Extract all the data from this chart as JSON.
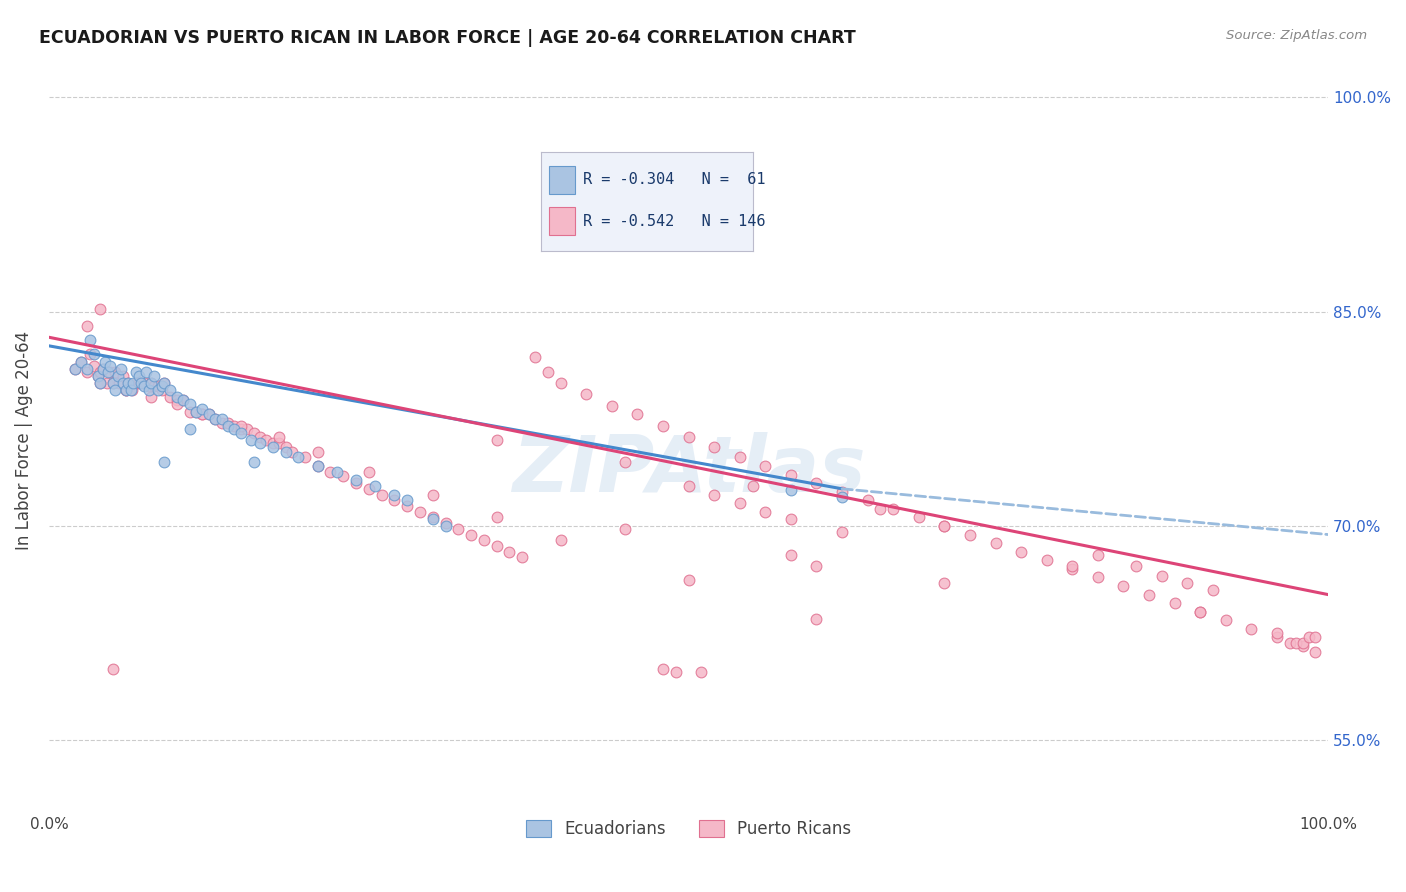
{
  "title": "ECUADORIAN VS PUERTO RICAN IN LABOR FORCE | AGE 20-64 CORRELATION CHART",
  "source": "Source: ZipAtlas.com",
  "ylabel": "In Labor Force | Age 20-64",
  "xlim": [
    0.0,
    1.0
  ],
  "ylim": [
    0.5,
    1.02
  ],
  "ytick_values": [
    0.55,
    0.7,
    0.85,
    1.0
  ],
  "right_ytick_labels": [
    "100.0%",
    "85.0%",
    "70.0%",
    "55.0%"
  ],
  "right_ytick_values": [
    1.0,
    0.85,
    0.7,
    0.55
  ],
  "xtick_labels": [
    "0.0%",
    "100.0%"
  ],
  "xtick_values": [
    0.0,
    1.0
  ],
  "ecu_color": "#aac4e2",
  "ecu_edge_color": "#6699cc",
  "pr_color": "#f5b8c8",
  "pr_edge_color": "#e07090",
  "ecu_R": -0.304,
  "ecu_N": 61,
  "pr_R": -0.542,
  "pr_N": 146,
  "trend_ecu_color": "#4488cc",
  "trend_pr_color": "#dd4477",
  "trend_ecu_dashed_color": "#99bbdd",
  "watermark": "ZIPAtlas",
  "legend_bg": "#eef2fa",
  "ecu_line_start_y": 0.826,
  "ecu_line_end_x": 0.62,
  "ecu_line_end_y": 0.726,
  "ecu_line_dashed_end_x": 1.0,
  "ecu_line_dashed_end_y": 0.694,
  "pr_line_start_y": 0.832,
  "pr_line_end_y": 0.652,
  "ecu_x": [
    0.02,
    0.025,
    0.03,
    0.032,
    0.035,
    0.038,
    0.04,
    0.042,
    0.044,
    0.046,
    0.048,
    0.05,
    0.052,
    0.054,
    0.056,
    0.058,
    0.06,
    0.062,
    0.064,
    0.066,
    0.068,
    0.07,
    0.072,
    0.074,
    0.076,
    0.078,
    0.08,
    0.082,
    0.085,
    0.088,
    0.09,
    0.095,
    0.1,
    0.105,
    0.11,
    0.115,
    0.12,
    0.125,
    0.13,
    0.135,
    0.14,
    0.145,
    0.15,
    0.158,
    0.165,
    0.175,
    0.185,
    0.195,
    0.21,
    0.225,
    0.24,
    0.255,
    0.27,
    0.28,
    0.3,
    0.31,
    0.16,
    0.09,
    0.11,
    0.58,
    0.62
  ],
  "ecu_y": [
    0.81,
    0.815,
    0.81,
    0.83,
    0.82,
    0.805,
    0.8,
    0.81,
    0.815,
    0.808,
    0.812,
    0.8,
    0.795,
    0.805,
    0.81,
    0.8,
    0.795,
    0.8,
    0.795,
    0.8,
    0.808,
    0.805,
    0.8,
    0.798,
    0.808,
    0.795,
    0.8,
    0.805,
    0.795,
    0.798,
    0.8,
    0.795,
    0.79,
    0.788,
    0.785,
    0.78,
    0.782,
    0.778,
    0.775,
    0.775,
    0.77,
    0.768,
    0.765,
    0.76,
    0.758,
    0.755,
    0.752,
    0.748,
    0.742,
    0.738,
    0.732,
    0.728,
    0.722,
    0.718,
    0.705,
    0.7,
    0.745,
    0.745,
    0.768,
    0.725,
    0.72
  ],
  "pr_x": [
    0.02,
    0.025,
    0.03,
    0.032,
    0.035,
    0.038,
    0.04,
    0.042,
    0.045,
    0.048,
    0.05,
    0.052,
    0.055,
    0.058,
    0.06,
    0.062,
    0.065,
    0.068,
    0.07,
    0.072,
    0.075,
    0.078,
    0.08,
    0.082,
    0.085,
    0.088,
    0.09,
    0.095,
    0.1,
    0.105,
    0.11,
    0.115,
    0.12,
    0.125,
    0.13,
    0.135,
    0.14,
    0.145,
    0.15,
    0.155,
    0.16,
    0.165,
    0.17,
    0.175,
    0.18,
    0.185,
    0.19,
    0.2,
    0.21,
    0.22,
    0.23,
    0.24,
    0.25,
    0.26,
    0.27,
    0.28,
    0.29,
    0.3,
    0.31,
    0.32,
    0.33,
    0.34,
    0.35,
    0.36,
    0.37,
    0.38,
    0.39,
    0.4,
    0.42,
    0.44,
    0.46,
    0.48,
    0.5,
    0.52,
    0.54,
    0.56,
    0.58,
    0.6,
    0.62,
    0.64,
    0.66,
    0.68,
    0.7,
    0.72,
    0.74,
    0.76,
    0.78,
    0.8,
    0.82,
    0.84,
    0.86,
    0.88,
    0.9,
    0.92,
    0.94,
    0.96,
    0.98,
    0.99,
    0.04,
    0.06,
    0.08,
    0.1,
    0.12,
    0.15,
    0.18,
    0.21,
    0.25,
    0.3,
    0.35,
    0.4,
    0.5,
    0.6,
    0.7,
    0.8,
    0.9,
    0.96,
    0.97,
    0.975,
    0.98,
    0.985,
    0.99,
    0.03,
    0.04,
    0.35,
    0.45,
    0.55,
    0.65,
    0.45,
    0.54,
    0.56,
    0.58,
    0.62,
    0.5,
    0.52,
    0.58,
    0.6,
    0.7,
    0.82,
    0.85,
    0.87,
    0.89,
    0.91,
    0.05,
    0.48,
    0.49,
    0.51
  ],
  "pr_y": [
    0.81,
    0.815,
    0.808,
    0.82,
    0.812,
    0.805,
    0.808,
    0.81,
    0.8,
    0.808,
    0.8,
    0.808,
    0.8,
    0.805,
    0.795,
    0.8,
    0.795,
    0.8,
    0.8,
    0.8,
    0.8,
    0.798,
    0.8,
    0.798,
    0.798,
    0.795,
    0.8,
    0.79,
    0.788,
    0.788,
    0.78,
    0.78,
    0.778,
    0.778,
    0.775,
    0.772,
    0.772,
    0.77,
    0.768,
    0.768,
    0.765,
    0.762,
    0.76,
    0.758,
    0.758,
    0.755,
    0.752,
    0.748,
    0.742,
    0.738,
    0.735,
    0.73,
    0.726,
    0.722,
    0.718,
    0.714,
    0.71,
    0.706,
    0.702,
    0.698,
    0.694,
    0.69,
    0.686,
    0.682,
    0.678,
    0.818,
    0.808,
    0.8,
    0.792,
    0.784,
    0.778,
    0.77,
    0.762,
    0.755,
    0.748,
    0.742,
    0.736,
    0.73,
    0.724,
    0.718,
    0.712,
    0.706,
    0.7,
    0.694,
    0.688,
    0.682,
    0.676,
    0.67,
    0.664,
    0.658,
    0.652,
    0.646,
    0.64,
    0.634,
    0.628,
    0.622,
    0.616,
    0.612,
    0.8,
    0.795,
    0.79,
    0.785,
    0.778,
    0.77,
    0.762,
    0.752,
    0.738,
    0.722,
    0.706,
    0.69,
    0.662,
    0.635,
    0.7,
    0.672,
    0.64,
    0.625,
    0.618,
    0.618,
    0.618,
    0.622,
    0.622,
    0.84,
    0.852,
    0.76,
    0.745,
    0.728,
    0.712,
    0.698,
    0.716,
    0.71,
    0.705,
    0.696,
    0.728,
    0.722,
    0.68,
    0.672,
    0.66,
    0.68,
    0.672,
    0.665,
    0.66,
    0.655,
    0.6,
    0.6,
    0.598,
    0.598
  ]
}
